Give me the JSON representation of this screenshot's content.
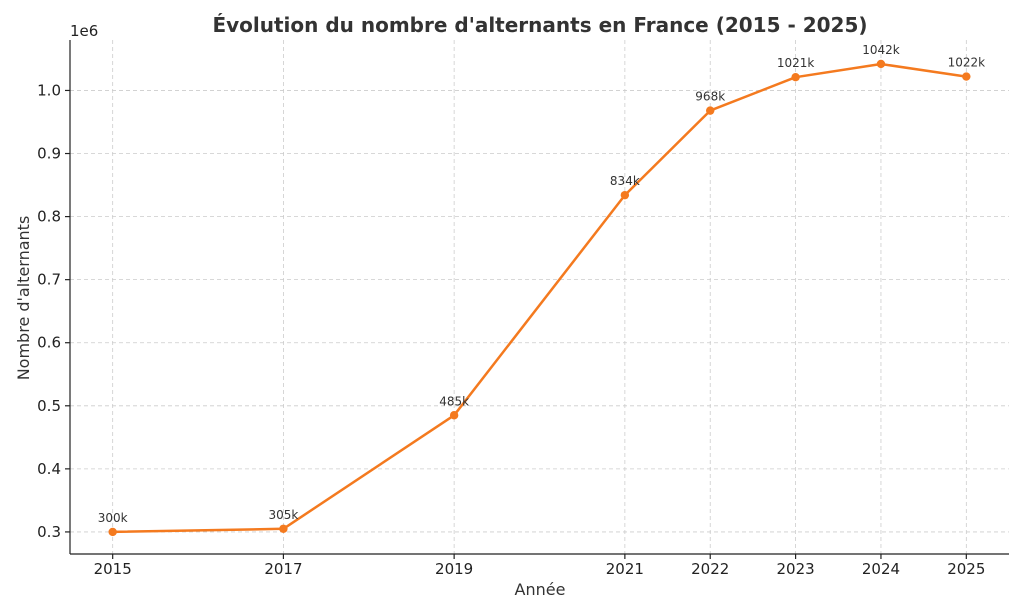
{
  "chart_data": {
    "type": "line",
    "title": "Évolution du nombre d'alternants en France (2015 - 2025)",
    "xlabel": "Année",
    "ylabel": "Nombre d'alternants",
    "y_offset_label": "1e6",
    "x": [
      2015,
      2017,
      2019,
      2021,
      2022,
      2023,
      2024,
      2025
    ],
    "x_ticks": [
      "2015",
      "2017",
      "2019",
      "2021",
      "2022",
      "2023",
      "2024",
      "2025"
    ],
    "series": [
      {
        "values": [
          300000,
          305000,
          485000,
          834000,
          968000,
          1021000,
          1042000,
          1022000
        ],
        "labels": [
          "300k",
          "305k",
          "485k",
          "834k",
          "968k",
          "1021k",
          "1042k",
          "1022k"
        ],
        "color": "#f47a1f"
      }
    ],
    "xlim": [
      2014.5,
      2025.5
    ],
    "ylim": [
      265000,
      1080000
    ],
    "y_ticks": [
      300000,
      400000,
      500000,
      600000,
      700000,
      800000,
      900000,
      1000000
    ],
    "y_tick_labels": [
      "0.3",
      "0.4",
      "0.5",
      "0.6",
      "0.7",
      "0.8",
      "0.9",
      "1.0"
    ],
    "grid": true,
    "grid_style": "dashed"
  }
}
